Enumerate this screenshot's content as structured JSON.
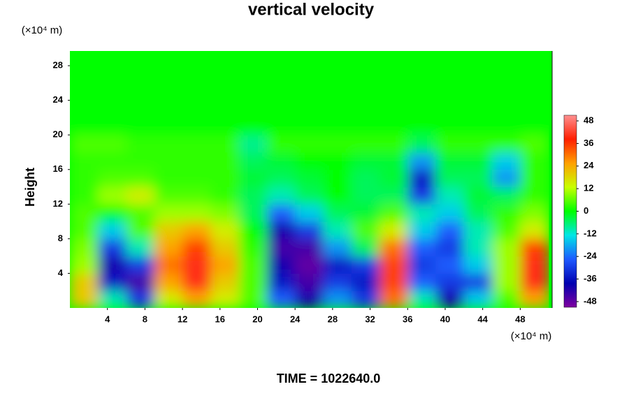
{
  "chart_data": {
    "type": "heatmap",
    "title": "vertical velocity",
    "ylabel": "Height",
    "y_unit": "(×10⁴ m)",
    "x_unit": "(×10⁴ m)",
    "footer": "TIME = 1022640.0",
    "xlim": [
      0,
      51.4
    ],
    "ylim": [
      0,
      29.7
    ],
    "xticks": [
      4,
      8,
      12,
      16,
      20,
      24,
      28,
      32,
      36,
      40,
      44,
      48
    ],
    "yticks": [
      4,
      8,
      12,
      16,
      20,
      24,
      28
    ],
    "zlim": [
      -51,
      51
    ],
    "zticks": [
      -48,
      -36,
      -24,
      -12,
      0,
      12,
      24,
      36,
      48
    ],
    "colors": [
      "#8000a0",
      "#0000b0",
      "#1e5aff",
      "#00e6e6",
      "#00ff00",
      "#c8ff00",
      "#ffa000",
      "#ff1e00",
      "#ff9090"
    ],
    "x": [
      1.5,
      4.5,
      7.5,
      10.5,
      13.5,
      16.5,
      19.5,
      22.5,
      25.5,
      28.5,
      31.5,
      34.5,
      37.5,
      40.5,
      43.5,
      46.5,
      49.5
    ],
    "y": [
      1,
      3,
      5,
      7,
      9,
      11,
      13,
      15,
      17,
      19,
      21,
      23,
      25,
      27,
      29
    ],
    "z": [
      [
        20,
        -10,
        -30,
        15,
        25,
        15,
        5,
        -25,
        -40,
        -20,
        -30,
        30,
        -10,
        -40,
        -15,
        5,
        25
      ],
      [
        20,
        -35,
        -45,
        25,
        40,
        20,
        5,
        -35,
        -45,
        -30,
        -35,
        35,
        -25,
        -30,
        -30,
        10,
        40
      ],
      [
        10,
        -40,
        -30,
        30,
        40,
        25,
        5,
        -40,
        -48,
        -35,
        -30,
        35,
        -30,
        -25,
        -15,
        10,
        40
      ],
      [
        8,
        -30,
        -10,
        25,
        35,
        20,
        3,
        -45,
        -45,
        -20,
        -5,
        30,
        -25,
        -30,
        -10,
        10,
        35
      ],
      [
        5,
        -15,
        5,
        20,
        25,
        15,
        0,
        -40,
        -30,
        -10,
        5,
        15,
        -15,
        -25,
        -10,
        5,
        15
      ],
      [
        5,
        0,
        5,
        10,
        10,
        8,
        -5,
        -25,
        -15,
        -5,
        -3,
        5,
        -10,
        -15,
        -5,
        3,
        8
      ],
      [
        3,
        10,
        15,
        5,
        5,
        3,
        -5,
        -10,
        -5,
        0,
        -5,
        -5,
        -30,
        -10,
        -3,
        -5,
        3
      ],
      [
        3,
        5,
        5,
        3,
        3,
        3,
        -3,
        -5,
        -3,
        0,
        -5,
        -3,
        -35,
        -5,
        -5,
        -20,
        3
      ],
      [
        3,
        3,
        3,
        3,
        3,
        3,
        -5,
        -3,
        0,
        0,
        -3,
        -3,
        -20,
        -3,
        -3,
        -15,
        3
      ],
      [
        5,
        5,
        3,
        3,
        3,
        3,
        -8,
        3,
        3,
        3,
        3,
        3,
        -5,
        3,
        3,
        3,
        5
      ],
      [
        0,
        0,
        0,
        0,
        0,
        0,
        0,
        0,
        0,
        0,
        0,
        0,
        0,
        0,
        0,
        0,
        0
      ],
      [
        0,
        0,
        0,
        0,
        0,
        0,
        0,
        0,
        0,
        0,
        0,
        0,
        0,
        0,
        0,
        0,
        0
      ],
      [
        0,
        0,
        0,
        0,
        0,
        0,
        0,
        0,
        0,
        0,
        0,
        0,
        0,
        0,
        0,
        0,
        0
      ],
      [
        0,
        0,
        0,
        0,
        0,
        0,
        0,
        0,
        0,
        0,
        0,
        0,
        0,
        0,
        0,
        0,
        0
      ],
      [
        0,
        0,
        0,
        0,
        0,
        0,
        0,
        0,
        0,
        0,
        0,
        0,
        0,
        0,
        0,
        0,
        0
      ]
    ]
  }
}
